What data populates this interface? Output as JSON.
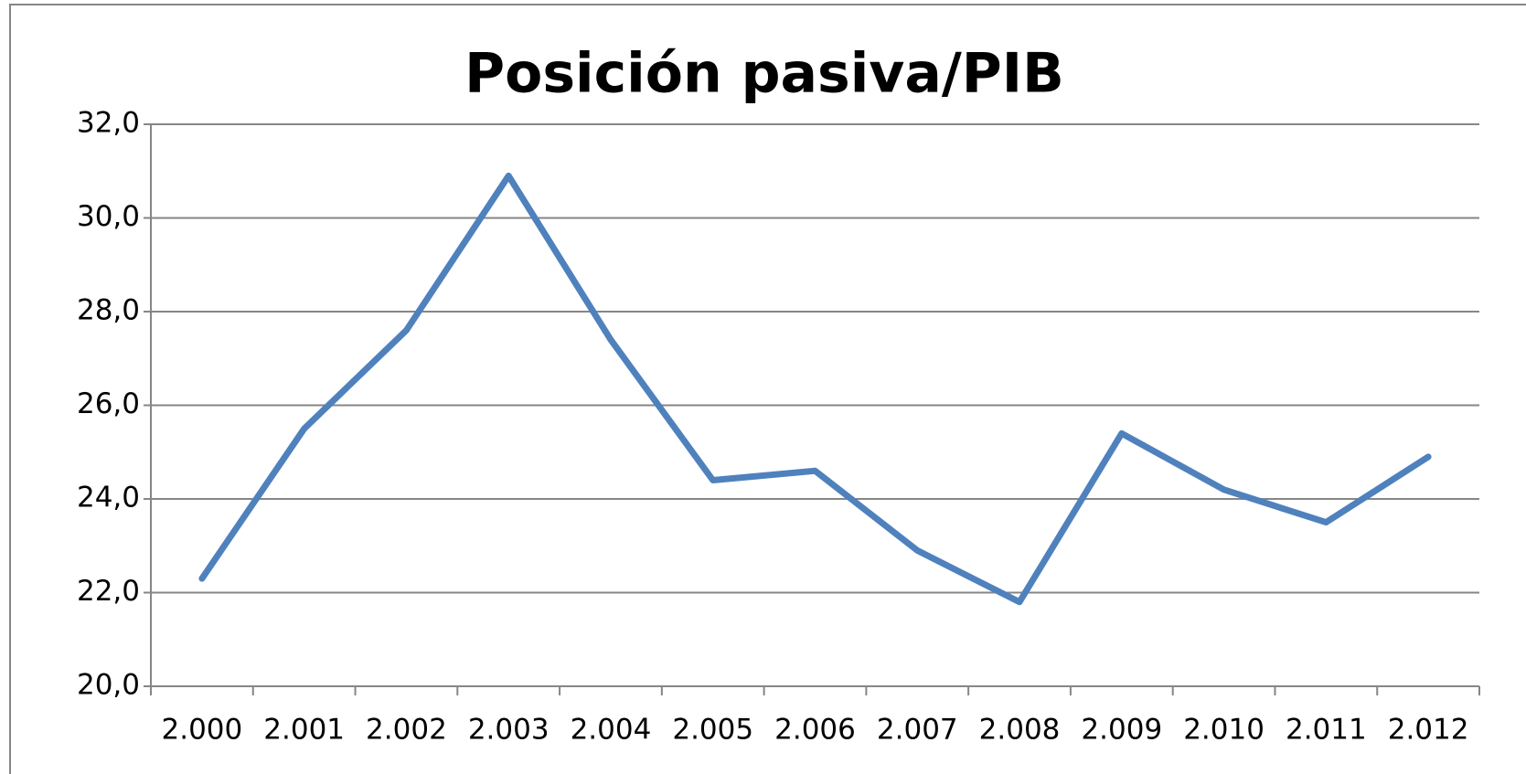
{
  "chart_data": {
    "type": "line",
    "title": "Posición pasiva/PIB",
    "categories": [
      "2.000",
      "2.001",
      "2.002",
      "2.003",
      "2.004",
      "2.005",
      "2.006",
      "2.007",
      "2.008",
      "2.009",
      "2.010",
      "2.011",
      "2.012"
    ],
    "values": [
      22.3,
      25.5,
      27.6,
      30.9,
      27.4,
      24.4,
      24.6,
      22.9,
      21.8,
      25.4,
      24.2,
      23.5,
      24.9
    ],
    "color": "#4f81bd",
    "ylim": [
      20,
      32
    ],
    "yticks": [
      {
        "value": 20,
        "label": "20,0"
      },
      {
        "value": 22,
        "label": "22,0"
      },
      {
        "value": 24,
        "label": "24,0"
      },
      {
        "value": 26,
        "label": "26,0"
      },
      {
        "value": 28,
        "label": "28,0"
      },
      {
        "value": 30,
        "label": "30,0"
      },
      {
        "value": 32,
        "label": "32,0"
      }
    ],
    "grid": true
  }
}
